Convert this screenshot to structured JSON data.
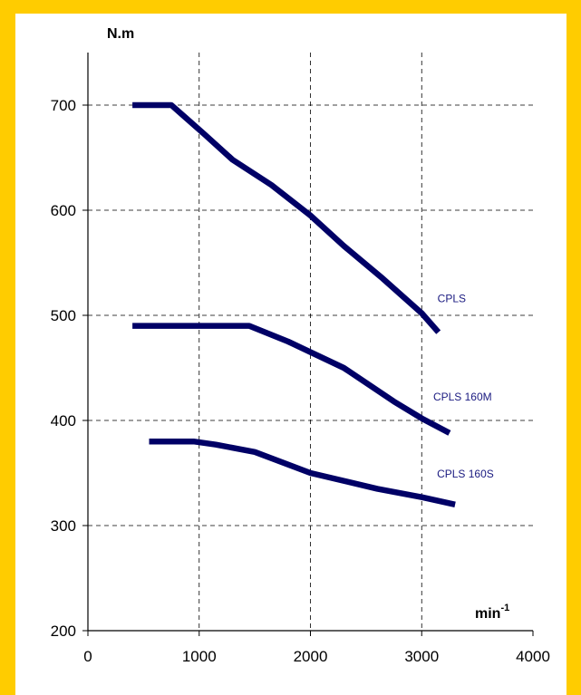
{
  "chart_data": {
    "type": "line",
    "title": "",
    "ylabel": "N.m",
    "xlabel": "min",
    "xlabel_sup": "-1",
    "xlim": [
      0,
      4000
    ],
    "ylim": [
      200,
      750
    ],
    "x_ticks": [
      0,
      1000,
      2000,
      3000,
      4000
    ],
    "y_ticks": [
      200,
      300,
      400,
      500,
      600,
      700
    ],
    "grid": true,
    "series": [
      {
        "name": "CPLS",
        "points": [
          [
            400,
            700
          ],
          [
            750,
            700
          ],
          [
            1050,
            672
          ],
          [
            1300,
            648
          ],
          [
            1650,
            624
          ],
          [
            2000,
            595
          ],
          [
            2300,
            566
          ],
          [
            2650,
            535
          ],
          [
            3000,
            502
          ],
          [
            3150,
            484
          ]
        ]
      },
      {
        "name": "CPLS 160M",
        "points": [
          [
            400,
            490
          ],
          [
            1450,
            490
          ],
          [
            1800,
            475
          ],
          [
            2300,
            450
          ],
          [
            2750,
            418
          ],
          [
            3000,
            402
          ],
          [
            3250,
            388
          ]
        ]
      },
      {
        "name": "CPLS 160S",
        "points": [
          [
            550,
            380
          ],
          [
            950,
            380
          ],
          [
            1150,
            377
          ],
          [
            1500,
            370
          ],
          [
            2000,
            350
          ],
          [
            2600,
            335
          ],
          [
            3000,
            327
          ],
          [
            3300,
            320
          ]
        ]
      }
    ],
    "colors": {
      "line": "#000066",
      "label": "#1a1a80",
      "frame": "#ffcc00",
      "grid": "#000000"
    }
  }
}
